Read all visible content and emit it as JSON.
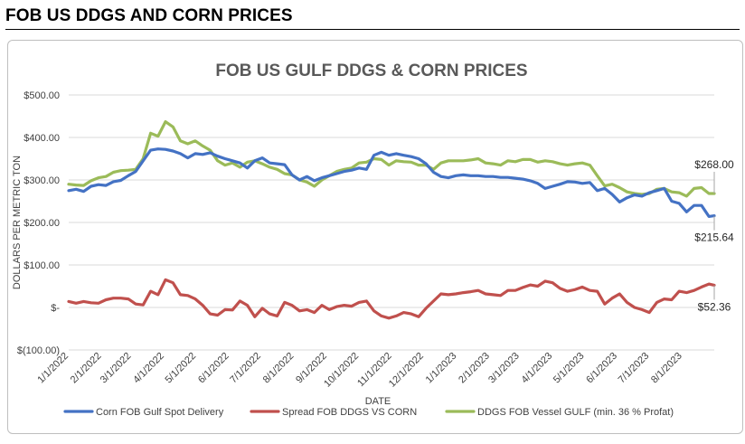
{
  "header": {
    "title": "FOB US DDGS AND CORN PRICES"
  },
  "chart_data": {
    "type": "line",
    "title": "FOB US GULF DDGS & CORN PRICES",
    "xlabel": "DATE",
    "ylabel": "DOLLARS PER METRIC TON",
    "ylim": [
      -100,
      500
    ],
    "y_ticks": [
      "$(100.00)",
      "$-",
      "$100.00",
      "$200.00",
      "$300.00",
      "$400.00",
      "$500.00"
    ],
    "y_tick_values": [
      -100,
      0,
      100,
      200,
      300,
      400,
      500
    ],
    "x_ticks": [
      "1/1/2022",
      "2/1/2022",
      "3/1/2022",
      "4/1/2022",
      "5/1/2022",
      "6/1/2022",
      "7/1/2022",
      "8/1/2022",
      "9/1/2022",
      "10/1/2022",
      "11/1/2022",
      "12/1/2022",
      "1/1/2023",
      "2/1/2023",
      "3/1/2023",
      "4/1/2023",
      "5/1/2023",
      "6/1/2023",
      "7/1/2023",
      "8/1/2023"
    ],
    "x_start": "2022-01-01",
    "x_end": "2023-08-31",
    "grid": true,
    "legend_position": "bottom",
    "series": [
      {
        "name": "Corn FOB Gulf Spot Delivery",
        "color": "#4472c4",
        "end_label": "$215.64",
        "points": [
          [
            "2022-01-01",
            275
          ],
          [
            "2022-01-08",
            278
          ],
          [
            "2022-01-15",
            273
          ],
          [
            "2022-01-22",
            285
          ],
          [
            "2022-01-29",
            289
          ],
          [
            "2022-02-05",
            287
          ],
          [
            "2022-02-12",
            296
          ],
          [
            "2022-02-19",
            299
          ],
          [
            "2022-02-26",
            310
          ],
          [
            "2022-03-05",
            320
          ],
          [
            "2022-03-12",
            345
          ],
          [
            "2022-03-19",
            370
          ],
          [
            "2022-03-26",
            373
          ],
          [
            "2022-04-02",
            372
          ],
          [
            "2022-04-09",
            368
          ],
          [
            "2022-04-16",
            362
          ],
          [
            "2022-04-23",
            352
          ],
          [
            "2022-04-30",
            362
          ],
          [
            "2022-05-07",
            360
          ],
          [
            "2022-05-14",
            364
          ],
          [
            "2022-05-21",
            356
          ],
          [
            "2022-05-28",
            350
          ],
          [
            "2022-06-04",
            345
          ],
          [
            "2022-06-11",
            340
          ],
          [
            "2022-06-18",
            328
          ],
          [
            "2022-06-25",
            345
          ],
          [
            "2022-07-02",
            352
          ],
          [
            "2022-07-09",
            340
          ],
          [
            "2022-07-16",
            338
          ],
          [
            "2022-07-23",
            336
          ],
          [
            "2022-07-30",
            312
          ],
          [
            "2022-08-06",
            300
          ],
          [
            "2022-08-13",
            308
          ],
          [
            "2022-08-20",
            298
          ],
          [
            "2022-08-27",
            305
          ],
          [
            "2022-09-03",
            310
          ],
          [
            "2022-09-10",
            315
          ],
          [
            "2022-09-17",
            320
          ],
          [
            "2022-09-24",
            323
          ],
          [
            "2022-10-01",
            328
          ],
          [
            "2022-10-08",
            325
          ],
          [
            "2022-10-15",
            358
          ],
          [
            "2022-10-22",
            365
          ],
          [
            "2022-10-29",
            358
          ],
          [
            "2022-11-05",
            362
          ],
          [
            "2022-11-12",
            358
          ],
          [
            "2022-11-19",
            355
          ],
          [
            "2022-11-26",
            350
          ],
          [
            "2022-12-03",
            338
          ],
          [
            "2022-12-10",
            318
          ],
          [
            "2022-12-17",
            308
          ],
          [
            "2022-12-24",
            305
          ],
          [
            "2022-12-31",
            310
          ],
          [
            "2023-01-07",
            312
          ],
          [
            "2023-01-14",
            310
          ],
          [
            "2023-01-21",
            310
          ],
          [
            "2023-01-28",
            308
          ],
          [
            "2023-02-04",
            308
          ],
          [
            "2023-02-11",
            306
          ],
          [
            "2023-02-18",
            306
          ],
          [
            "2023-02-25",
            304
          ],
          [
            "2023-03-04",
            302
          ],
          [
            "2023-03-11",
            298
          ],
          [
            "2023-03-18",
            292
          ],
          [
            "2023-03-25",
            280
          ],
          [
            "2023-04-01",
            285
          ],
          [
            "2023-04-08",
            290
          ],
          [
            "2023-04-15",
            296
          ],
          [
            "2023-04-22",
            295
          ],
          [
            "2023-04-29",
            292
          ],
          [
            "2023-05-06",
            294
          ],
          [
            "2023-05-13",
            275
          ],
          [
            "2023-05-20",
            280
          ],
          [
            "2023-05-27",
            266
          ],
          [
            "2023-06-03",
            248
          ],
          [
            "2023-06-10",
            258
          ],
          [
            "2023-06-17",
            265
          ],
          [
            "2023-06-24",
            262
          ],
          [
            "2023-07-01",
            270
          ],
          [
            "2023-07-08",
            275
          ],
          [
            "2023-07-15",
            280
          ],
          [
            "2023-07-22",
            250
          ],
          [
            "2023-07-29",
            245
          ],
          [
            "2023-08-05",
            225
          ],
          [
            "2023-08-12",
            240
          ],
          [
            "2023-08-19",
            240
          ],
          [
            "2023-08-26",
            214
          ],
          [
            "2023-08-31",
            215.64
          ]
        ]
      },
      {
        "name": "Spread FOB DDGS VS CORN",
        "color": "#c0504d",
        "end_label": "$52.36",
        "points": [
          [
            "2022-01-01",
            14
          ],
          [
            "2022-01-08",
            10
          ],
          [
            "2022-01-15",
            14
          ],
          [
            "2022-01-22",
            11
          ],
          [
            "2022-01-29",
            10
          ],
          [
            "2022-02-05",
            18
          ],
          [
            "2022-02-12",
            22
          ],
          [
            "2022-02-19",
            22
          ],
          [
            "2022-02-26",
            20
          ],
          [
            "2022-03-05",
            8
          ],
          [
            "2022-03-12",
            6
          ],
          [
            "2022-03-19",
            38
          ],
          [
            "2022-03-26",
            30
          ],
          [
            "2022-04-02",
            65
          ],
          [
            "2022-04-09",
            58
          ],
          [
            "2022-04-16",
            30
          ],
          [
            "2022-04-23",
            28
          ],
          [
            "2022-04-30",
            20
          ],
          [
            "2022-05-07",
            5
          ],
          [
            "2022-05-14",
            -15
          ],
          [
            "2022-05-21",
            -18
          ],
          [
            "2022-05-28",
            -5
          ],
          [
            "2022-06-04",
            -6
          ],
          [
            "2022-06-11",
            15
          ],
          [
            "2022-06-18",
            5
          ],
          [
            "2022-06-25",
            -22
          ],
          [
            "2022-07-02",
            -2
          ],
          [
            "2022-07-09",
            -15
          ],
          [
            "2022-07-16",
            -20
          ],
          [
            "2022-07-23",
            12
          ],
          [
            "2022-07-30",
            5
          ],
          [
            "2022-08-06",
            -8
          ],
          [
            "2022-08-13",
            -5
          ],
          [
            "2022-08-20",
            -12
          ],
          [
            "2022-08-27",
            5
          ],
          [
            "2022-09-03",
            -5
          ],
          [
            "2022-09-10",
            2
          ],
          [
            "2022-09-17",
            5
          ],
          [
            "2022-09-24",
            3
          ],
          [
            "2022-10-01",
            12
          ],
          [
            "2022-10-08",
            15
          ],
          [
            "2022-10-15",
            -8
          ],
          [
            "2022-10-22",
            -20
          ],
          [
            "2022-10-29",
            -25
          ],
          [
            "2022-11-05",
            -20
          ],
          [
            "2022-11-12",
            -12
          ],
          [
            "2022-11-19",
            -15
          ],
          [
            "2022-11-26",
            -22
          ],
          [
            "2022-12-03",
            -2
          ],
          [
            "2022-12-10",
            15
          ],
          [
            "2022-12-17",
            32
          ],
          [
            "2022-12-24",
            30
          ],
          [
            "2022-12-31",
            32
          ],
          [
            "2023-01-07",
            35
          ],
          [
            "2023-01-14",
            37
          ],
          [
            "2023-01-21",
            40
          ],
          [
            "2023-01-28",
            32
          ],
          [
            "2023-02-04",
            30
          ],
          [
            "2023-02-11",
            28
          ],
          [
            "2023-02-18",
            40
          ],
          [
            "2023-02-25",
            40
          ],
          [
            "2023-03-04",
            47
          ],
          [
            "2023-03-11",
            53
          ],
          [
            "2023-03-18",
            50
          ],
          [
            "2023-03-25",
            62
          ],
          [
            "2023-04-01",
            58
          ],
          [
            "2023-04-08",
            45
          ],
          [
            "2023-04-15",
            38
          ],
          [
            "2023-04-22",
            42
          ],
          [
            "2023-04-29",
            48
          ],
          [
            "2023-05-06",
            40
          ],
          [
            "2023-05-13",
            38
          ],
          [
            "2023-05-20",
            8
          ],
          [
            "2023-05-27",
            22
          ],
          [
            "2023-06-03",
            32
          ],
          [
            "2023-06-10",
            12
          ],
          [
            "2023-06-17",
            0
          ],
          [
            "2023-06-24",
            -5
          ],
          [
            "2023-07-01",
            -12
          ],
          [
            "2023-07-08",
            12
          ],
          [
            "2023-07-15",
            20
          ],
          [
            "2023-07-22",
            18
          ],
          [
            "2023-07-29",
            38
          ],
          [
            "2023-08-05",
            35
          ],
          [
            "2023-08-12",
            40
          ],
          [
            "2023-08-19",
            48
          ],
          [
            "2023-08-26",
            55
          ],
          [
            "2023-08-31",
            52.36
          ]
        ]
      },
      {
        "name": "DDGS FOB Vessel GULF  (min. 36 % Profat)",
        "color": "#9bbb59",
        "end_label": "$268.00",
        "points": [
          [
            "2022-01-01",
            290
          ],
          [
            "2022-01-08",
            288
          ],
          [
            "2022-01-15",
            287
          ],
          [
            "2022-01-22",
            298
          ],
          [
            "2022-01-29",
            305
          ],
          [
            "2022-02-05",
            308
          ],
          [
            "2022-02-12",
            318
          ],
          [
            "2022-02-19",
            322
          ],
          [
            "2022-02-26",
            323
          ],
          [
            "2022-03-05",
            325
          ],
          [
            "2022-03-12",
            350
          ],
          [
            "2022-03-19",
            410
          ],
          [
            "2022-03-26",
            403
          ],
          [
            "2022-04-02",
            437
          ],
          [
            "2022-04-09",
            425
          ],
          [
            "2022-04-16",
            392
          ],
          [
            "2022-04-23",
            385
          ],
          [
            "2022-04-30",
            392
          ],
          [
            "2022-05-07",
            380
          ],
          [
            "2022-05-14",
            370
          ],
          [
            "2022-05-21",
            345
          ],
          [
            "2022-05-28",
            335
          ],
          [
            "2022-06-04",
            340
          ],
          [
            "2022-06-11",
            330
          ],
          [
            "2022-06-18",
            342
          ],
          [
            "2022-06-25",
            345
          ],
          [
            "2022-07-02",
            338
          ],
          [
            "2022-07-09",
            330
          ],
          [
            "2022-07-16",
            325
          ],
          [
            "2022-07-23",
            315
          ],
          [
            "2022-07-30",
            312
          ],
          [
            "2022-08-06",
            300
          ],
          [
            "2022-08-13",
            295
          ],
          [
            "2022-08-20",
            285
          ],
          [
            "2022-08-27",
            300
          ],
          [
            "2022-09-03",
            310
          ],
          [
            "2022-09-10",
            320
          ],
          [
            "2022-09-17",
            325
          ],
          [
            "2022-09-24",
            328
          ],
          [
            "2022-10-01",
            340
          ],
          [
            "2022-10-08",
            342
          ],
          [
            "2022-10-15",
            350
          ],
          [
            "2022-10-22",
            348
          ],
          [
            "2022-10-29",
            335
          ],
          [
            "2022-11-05",
            345
          ],
          [
            "2022-11-12",
            343
          ],
          [
            "2022-11-19",
            342
          ],
          [
            "2022-11-26",
            335
          ],
          [
            "2022-12-03",
            335
          ],
          [
            "2022-12-10",
            325
          ],
          [
            "2022-12-17",
            340
          ],
          [
            "2022-12-24",
            345
          ],
          [
            "2022-12-31",
            345
          ],
          [
            "2023-01-07",
            345
          ],
          [
            "2023-01-14",
            347
          ],
          [
            "2023-01-21",
            350
          ],
          [
            "2023-01-28",
            340
          ],
          [
            "2023-02-04",
            338
          ],
          [
            "2023-02-11",
            335
          ],
          [
            "2023-02-18",
            345
          ],
          [
            "2023-02-25",
            343
          ],
          [
            "2023-03-04",
            348
          ],
          [
            "2023-03-11",
            348
          ],
          [
            "2023-03-18",
            342
          ],
          [
            "2023-03-25",
            345
          ],
          [
            "2023-04-01",
            343
          ],
          [
            "2023-04-08",
            338
          ],
          [
            "2023-04-15",
            335
          ],
          [
            "2023-04-22",
            338
          ],
          [
            "2023-04-29",
            340
          ],
          [
            "2023-05-06",
            335
          ],
          [
            "2023-05-13",
            310
          ],
          [
            "2023-05-20",
            286
          ],
          [
            "2023-05-27",
            290
          ],
          [
            "2023-06-03",
            282
          ],
          [
            "2023-06-10",
            272
          ],
          [
            "2023-06-17",
            268
          ],
          [
            "2023-06-24",
            266
          ],
          [
            "2023-07-01",
            268
          ],
          [
            "2023-07-08",
            278
          ],
          [
            "2023-07-15",
            280
          ],
          [
            "2023-07-22",
            272
          ],
          [
            "2023-07-29",
            270
          ],
          [
            "2023-08-05",
            262
          ],
          [
            "2023-08-12",
            280
          ],
          [
            "2023-08-19",
            282
          ],
          [
            "2023-08-26",
            268
          ],
          [
            "2023-08-31",
            268
          ]
        ]
      }
    ]
  }
}
